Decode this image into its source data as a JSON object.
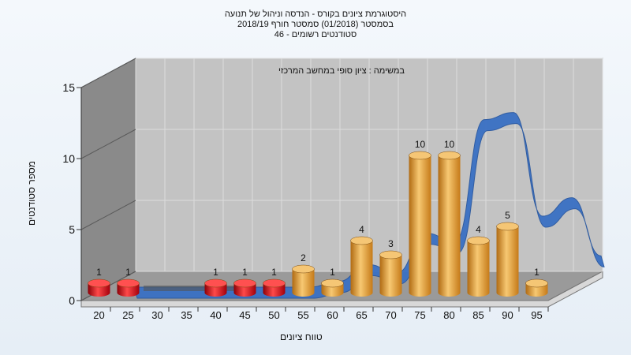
{
  "chart_data": {
    "type": "bar",
    "title_lines": [
      "היסטוגרמת ציונים בקורס - הנדסה וניהול של תנועה",
      "בסמסטר  (01/2018)  סמסטר חורף  2018/19",
      "סטודנטים רשומים - 46"
    ],
    "annotation": "במשימה : ציון סופי במחשב המרכזי",
    "xlabel": "טווח ציונים",
    "ylabel": "מספר סטודנטים",
    "ylim": [
      0,
      15
    ],
    "y_ticks": [
      "0",
      "5",
      "10",
      "15"
    ],
    "categories": [
      "20",
      "25",
      "30",
      "35",
      "40",
      "45",
      "50",
      "55",
      "60",
      "65",
      "70",
      "75",
      "80",
      "85",
      "90",
      "95"
    ],
    "values": [
      1,
      1,
      0,
      0,
      1,
      1,
      1,
      2,
      1,
      4,
      3,
      10,
      10,
      4,
      5,
      1
    ],
    "value_labels": [
      "1",
      "1",
      "",
      "",
      "1",
      "1",
      "1",
      "2",
      "1",
      "4",
      "3",
      "10",
      "10",
      "4",
      "5",
      "1"
    ],
    "bar_groups": [
      "fail",
      "fail",
      "fail",
      "fail",
      "fail",
      "fail",
      "fail",
      "pass",
      "pass",
      "pass",
      "pass",
      "pass",
      "pass",
      "pass",
      "pass",
      "pass"
    ],
    "curve_values": [
      0,
      0,
      0,
      0,
      0,
      0,
      0,
      0.4,
      1.6,
      1.0,
      3.8,
      3.2,
      11.8,
      12.3,
      5.0,
      6.3,
      2.2
    ],
    "grid": true,
    "colors": {
      "fail": "#e8101a",
      "pass": "#f0a330",
      "curve": "#3a70c4",
      "plot_back": "#c3c3c3",
      "side_wall": "#8a8a8a",
      "floor": "#9a9a9a"
    }
  }
}
